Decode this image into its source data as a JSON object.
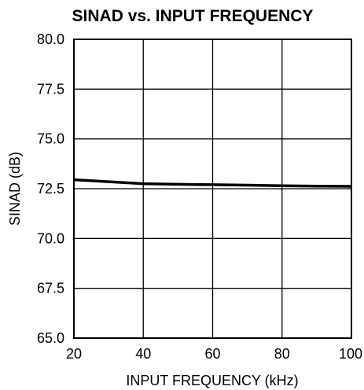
{
  "chart_data": {
    "type": "line",
    "title": "SINAD vs. INPUT FREQUENCY",
    "xlabel": "INPUT FREQUENCY (kHz)",
    "ylabel": "SINAD (dB)",
    "xlim": [
      20,
      100
    ],
    "ylim": [
      65.0,
      80.0
    ],
    "xticks": [
      "20",
      "40",
      "60",
      "80",
      "100"
    ],
    "yticks": [
      "80.0",
      "77.5",
      "75.0",
      "72.5",
      "70.0",
      "67.5",
      "65.0"
    ],
    "grid": true,
    "series": [
      {
        "x": [
          20,
          30,
          40,
          50,
          60,
          70,
          80,
          90,
          100
        ],
        "y": [
          72.95,
          72.85,
          72.75,
          72.72,
          72.7,
          72.68,
          72.65,
          72.63,
          72.62
        ],
        "color": "#000000"
      }
    ]
  }
}
